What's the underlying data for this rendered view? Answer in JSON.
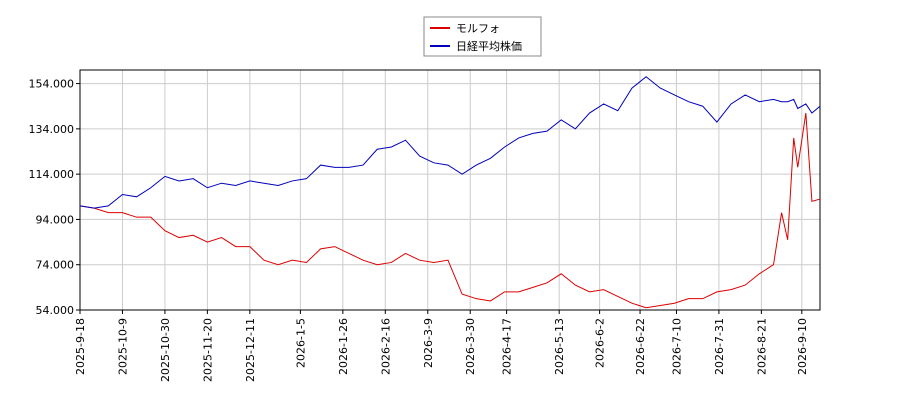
{
  "chart_data": {
    "type": "line",
    "x": [
      "2025-9-18",
      "2025-9-25",
      "2025-10-2",
      "2025-10-9",
      "2025-10-16",
      "2025-10-23",
      "2025-10-30",
      "2025-11-6",
      "2025-11-13",
      "2025-11-20",
      "2025-11-27",
      "2025-12-4",
      "2025-12-11",
      "2025-12-18",
      "2025-12-25",
      "2026-1-1",
      "2026-1-8",
      "2026-1-15",
      "2026-1-22",
      "2026-1-29",
      "2026-2-5",
      "2026-2-12",
      "2026-2-19",
      "2026-2-26",
      "2026-3-5",
      "2026-3-12",
      "2026-3-19",
      "2026-3-26",
      "2026-4-2",
      "2026-4-9",
      "2026-4-16",
      "2026-4-23",
      "2026-4-30",
      "2026-5-7",
      "2026-5-14",
      "2026-5-21",
      "2026-5-28",
      "2026-6-4",
      "2026-6-11",
      "2026-6-18",
      "2026-6-25",
      "2026-7-2",
      "2026-7-9",
      "2026-7-16",
      "2026-7-23",
      "2026-7-30",
      "2026-8-6",
      "2026-8-13",
      "2026-8-20",
      "2026-8-27",
      "2026-8-31",
      "2026-9-3",
      "2026-9-6",
      "2026-9-8",
      "2026-9-12",
      "2026-9-15",
      "2026-9-19"
    ],
    "series": [
      {
        "name": "モルフォ",
        "color": "#dd0000",
        "values": [
          100000,
          99000,
          97000,
          97000,
          95000,
          95000,
          89000,
          86000,
          87000,
          84000,
          86000,
          82000,
          82000,
          76000,
          74000,
          76000,
          75000,
          81000,
          82000,
          79000,
          76000,
          74000,
          75000,
          79000,
          76000,
          75000,
          76000,
          61000,
          59000,
          58000,
          62000,
          62000,
          64000,
          66000,
          70000,
          65000,
          62000,
          63000,
          60000,
          57000,
          55000,
          56000,
          57000,
          59000,
          59000,
          62000,
          63000,
          65000,
          70000,
          74000,
          97000,
          85000,
          130000,
          117000,
          141000,
          102000,
          103000
        ]
      },
      {
        "name": "日経平均株価",
        "color": "#0000bb",
        "values": [
          100000,
          99000,
          100000,
          105000,
          104000,
          108000,
          113000,
          111000,
          112000,
          108000,
          110000,
          109000,
          111000,
          110000,
          109000,
          111000,
          112000,
          118000,
          117000,
          117000,
          118000,
          125000,
          126000,
          129000,
          122000,
          119000,
          118000,
          114000,
          118000,
          121000,
          126000,
          130000,
          132000,
          133000,
          138000,
          134000,
          141000,
          145000,
          142000,
          152000,
          157000,
          152000,
          149000,
          146000,
          144000,
          137000,
          145000,
          149000,
          146000,
          147000,
          146000,
          146000,
          147000,
          143000,
          145000,
          141000,
          144000
        ]
      }
    ],
    "xlim": [
      "2025-9-18",
      "2026-9-19"
    ],
    "xticks": [
      "2025-9-18",
      "2025-10-9",
      "2025-10-30",
      "2025-11-20",
      "2025-12-11",
      "2026-1-5",
      "2026-1-26",
      "2026-2-16",
      "2026-3-9",
      "2026-3-30",
      "2026-4-17",
      "2026-5-13",
      "2026-6-2",
      "2026-6-22",
      "2026-7-10",
      "2026-7-31",
      "2026-8-21",
      "2026-9-10"
    ],
    "ylim": [
      54000,
      160000
    ],
    "yticks": [
      {
        "value": 54000,
        "label": "54.000"
      },
      {
        "value": 74000,
        "label": "74.000"
      },
      {
        "value": 94000,
        "label": "94.000"
      },
      {
        "value": 114000,
        "label": "114.000"
      },
      {
        "value": 134000,
        "label": "134.000"
      },
      {
        "value": 154000,
        "label": "154.000"
      }
    ],
    "grid": true,
    "legend": "top"
  }
}
